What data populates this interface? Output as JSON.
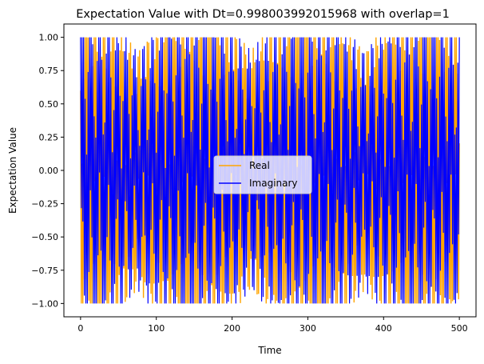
{
  "chart_data": {
    "type": "line",
    "title": "Expectation Value with Dt=0.998003992015968 with overlap=1",
    "xlabel": "Time",
    "ylabel": "Expectation Value",
    "xlim": [
      -22,
      522
    ],
    "ylim": [
      -1.1,
      1.1
    ],
    "x_ticks": [
      0,
      100,
      200,
      300,
      400,
      500
    ],
    "y_ticks": [
      -1.0,
      -0.75,
      -0.5,
      -0.25,
      0.0,
      0.25,
      0.5,
      0.75,
      1.0
    ],
    "x_tick_labels": [
      "0",
      "100",
      "200",
      "300",
      "400",
      "500"
    ],
    "y_tick_labels": [
      "−1.00",
      "−0.75",
      "−0.50",
      "−0.25",
      "0.00",
      "0.25",
      "0.50",
      "0.75",
      "1.00"
    ],
    "grid": false,
    "legend_position": "center-right",
    "series": [
      {
        "name": "Real",
        "color": "#ffa500",
        "x_range": [
          0,
          500
        ],
        "points_count": 501,
        "value_range": [
          -1.0,
          1.0
        ],
        "description": "rapid oscillation between -1 and 1"
      },
      {
        "name": "Imaginary",
        "color": "#0000ff",
        "x_range": [
          0,
          500
        ],
        "points_count": 501,
        "value_range": [
          -1.0,
          1.0
        ],
        "description": "rapid oscillation between -1 and 1"
      }
    ]
  }
}
